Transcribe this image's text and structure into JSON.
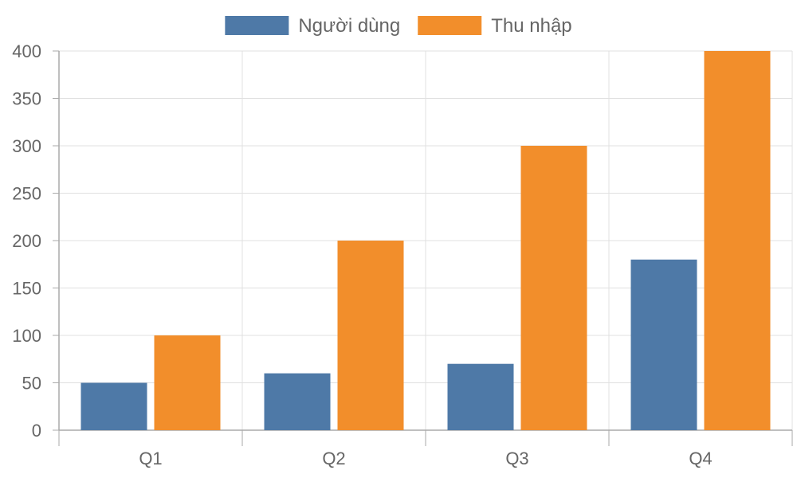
{
  "chart_data": {
    "type": "bar",
    "title": "",
    "xlabel": "",
    "ylabel": "",
    "categories": [
      "Q1",
      "Q2",
      "Q3",
      "Q4"
    ],
    "series": [
      {
        "name": "Người dùng",
        "values": [
          50,
          60,
          70,
          180
        ],
        "color": "#4e79a7"
      },
      {
        "name": "Thu nhập",
        "values": [
          100,
          200,
          300,
          400
        ],
        "color": "#f28e2b"
      }
    ],
    "ylim": [
      0,
      400
    ],
    "yticks": [
      0,
      50,
      100,
      150,
      200,
      250,
      300,
      350,
      400
    ],
    "grid": true,
    "legend_position": "top-center"
  }
}
